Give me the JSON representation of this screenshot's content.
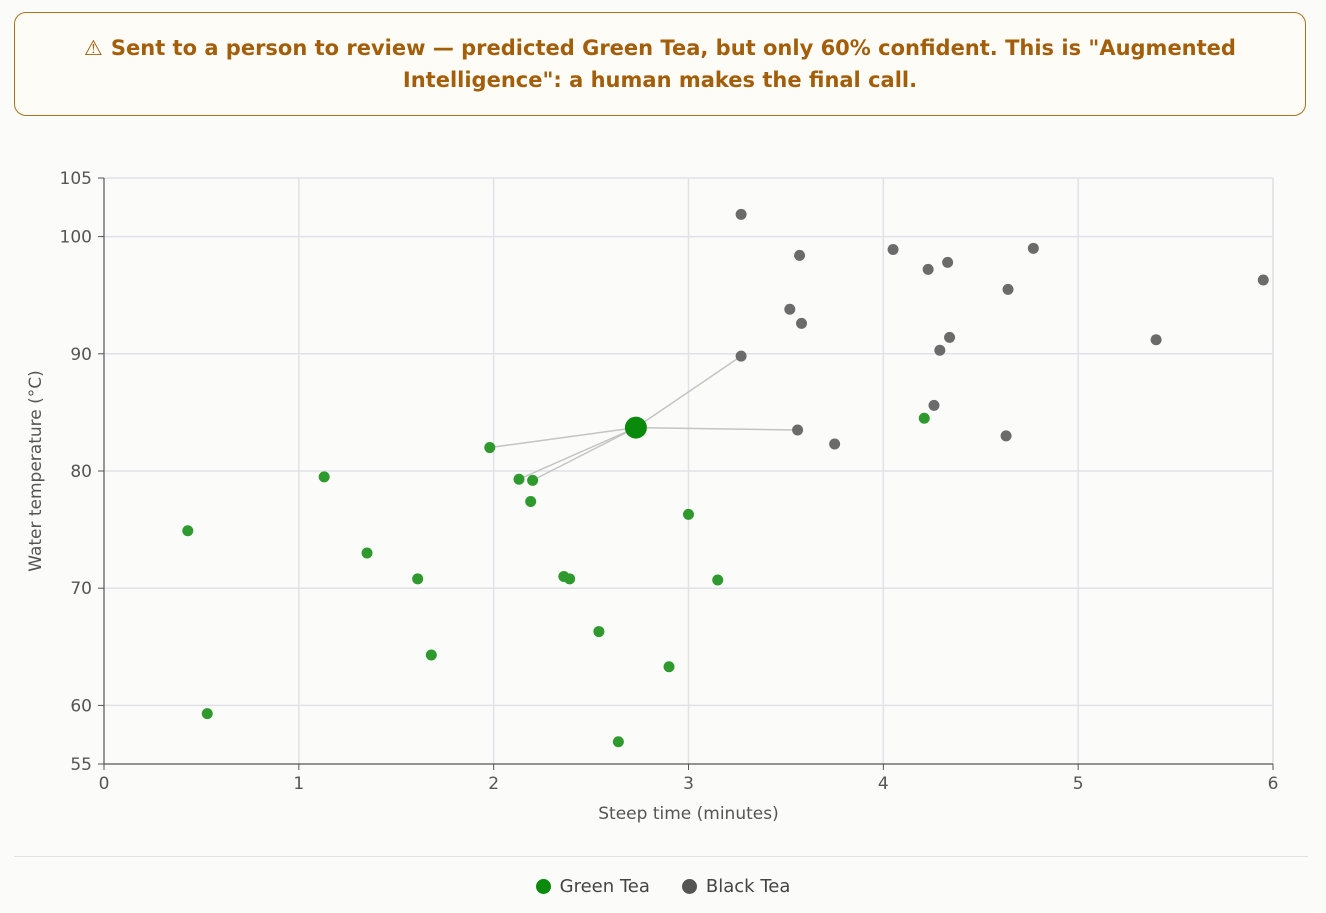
{
  "banner": {
    "icon": "warning-triangle-icon",
    "icon_glyph": "⚠",
    "text": "Sent to a person to review — predicted Green Tea, but only 60% confident. This is \"Augmented Intelligence\": a human makes the final call.",
    "color": "#a35e0a",
    "border_color": "#a8741a"
  },
  "chart_data": {
    "type": "scatter",
    "title": "",
    "xlabel": "Steep time (minutes)",
    "ylabel": "Water temperature (°C)",
    "xlim": [
      0,
      6
    ],
    "ylim": [
      55,
      105
    ],
    "x_ticks": [
      0,
      1,
      2,
      3,
      4,
      5,
      6
    ],
    "y_ticks": [
      55,
      60,
      70,
      80,
      90,
      100,
      105
    ],
    "grid": true,
    "legend_position": "bottom",
    "series": [
      {
        "name": "Green Tea",
        "color": "#2e9a2e",
        "legend_color": "#0a8a0a",
        "points": [
          [
            0.43,
            74.9
          ],
          [
            0.53,
            59.3
          ],
          [
            1.13,
            79.5
          ],
          [
            1.35,
            73.0
          ],
          [
            1.61,
            70.8
          ],
          [
            1.68,
            64.3
          ],
          [
            1.98,
            82.0
          ],
          [
            2.13,
            79.3
          ],
          [
            2.2,
            79.2
          ],
          [
            2.19,
            77.4
          ],
          [
            2.36,
            71.0
          ],
          [
            2.39,
            70.8
          ],
          [
            2.54,
            66.3
          ],
          [
            2.64,
            56.9
          ],
          [
            2.9,
            63.3
          ],
          [
            3.0,
            76.3
          ],
          [
            3.15,
            70.7
          ],
          [
            4.21,
            84.5
          ]
        ]
      },
      {
        "name": "Black Tea",
        "color": "#6b6b6b",
        "legend_color": "#555555",
        "points": [
          [
            3.27,
            101.9
          ],
          [
            3.57,
            98.4
          ],
          [
            3.52,
            93.8
          ],
          [
            3.58,
            92.6
          ],
          [
            3.27,
            89.8
          ],
          [
            3.56,
            83.5
          ],
          [
            3.75,
            82.3
          ],
          [
            4.05,
            98.9
          ],
          [
            4.23,
            97.2
          ],
          [
            4.33,
            97.8
          ],
          [
            4.64,
            95.5
          ],
          [
            4.77,
            99.0
          ],
          [
            4.34,
            91.4
          ],
          [
            4.29,
            90.3
          ],
          [
            4.26,
            85.6
          ],
          [
            4.63,
            83.0
          ],
          [
            5.4,
            91.2
          ],
          [
            5.95,
            96.3
          ]
        ]
      }
    ],
    "query_point": {
      "x": 2.73,
      "y": 83.7,
      "color": "#0a8a0a",
      "predicted": "Green Tea",
      "confidence": 0.6
    },
    "neighbors": [
      [
        1.98,
        82.0
      ],
      [
        2.13,
        79.3
      ],
      [
        2.2,
        79.2
      ],
      [
        3.27,
        89.8
      ],
      [
        3.56,
        83.5
      ]
    ]
  }
}
